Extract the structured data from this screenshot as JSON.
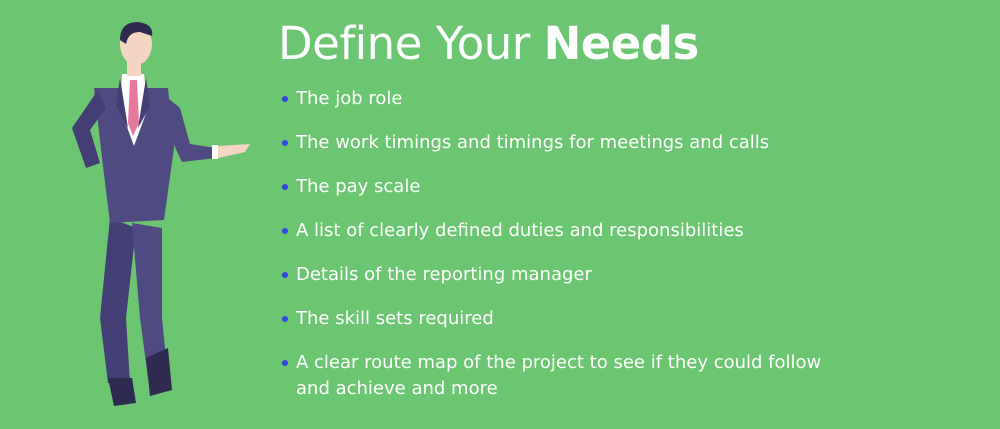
{
  "title": {
    "regular": "Define Your ",
    "bold": "Needs"
  },
  "items": [
    {
      "text": "The job role"
    },
    {
      "text": "The work timings and timings for meetings and calls"
    },
    {
      "text": "The pay scale"
    },
    {
      "text": "A list of clearly defined duties and responsibilities"
    },
    {
      "text": "Details of the reporting manager"
    },
    {
      "text": "The skill sets required"
    },
    {
      "text": "A clear route map of the project to see if they could follow and achieve and more"
    }
  ],
  "colors": {
    "background": "#6cc571",
    "bullet": "#3346e0",
    "suit": "#4f4a82",
    "tie": "#e6789e",
    "skin": "#f5d6c3"
  }
}
